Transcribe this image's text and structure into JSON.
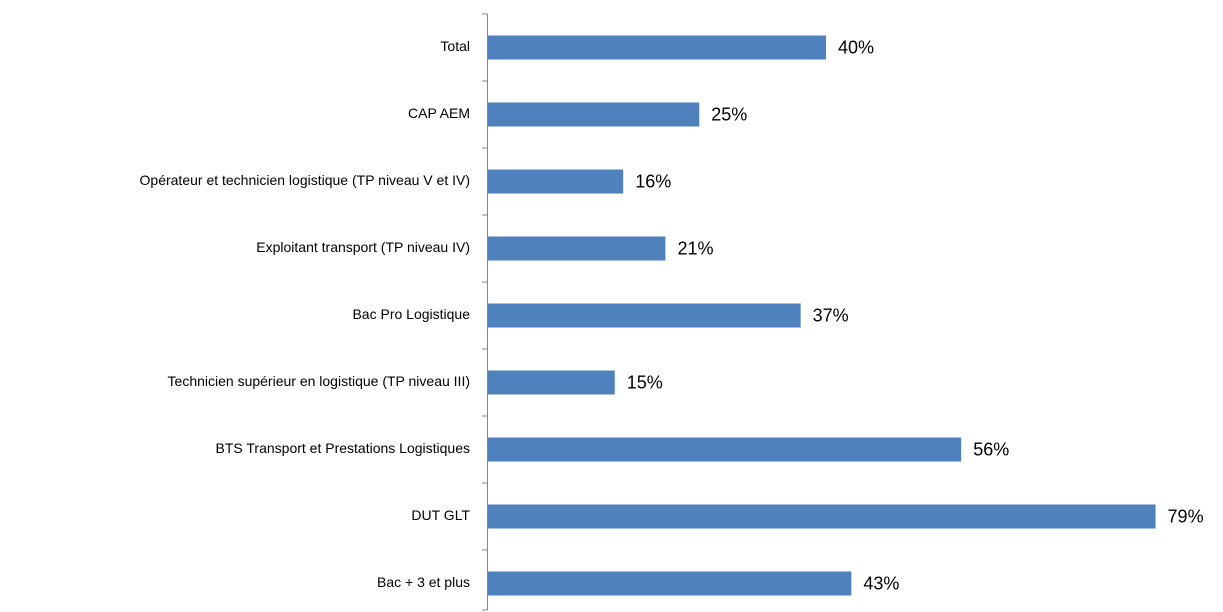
{
  "chart_data": {
    "type": "bar",
    "orientation": "horizontal",
    "categories": [
      "Total",
      "CAP AEM",
      "Opérateur et technicien logistique (TP niveau V et IV)",
      "Exploitant transport (TP niveau IV)",
      "Bac Pro Logistique",
      "Technicien supérieur en logistique (TP niveau III)",
      "BTS Transport et Prestations Logistiques",
      "DUT GLT",
      "Bac + 3 et plus"
    ],
    "values": [
      40,
      25,
      16,
      21,
      37,
      15,
      56,
      79,
      43
    ],
    "value_labels": [
      "40%",
      "25%",
      "16%",
      "21%",
      "37%",
      "15%",
      "56%",
      "79%",
      "43%"
    ],
    "color": "#4f81bd",
    "xlim": [
      0,
      80
    ]
  }
}
